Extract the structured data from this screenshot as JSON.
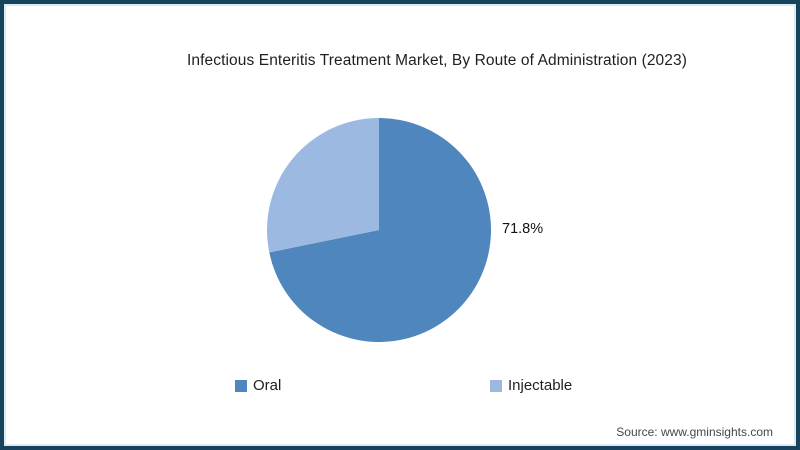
{
  "chart_data": {
    "type": "pie",
    "title": "Infectious Enteritis Treatment Market, By Route of Administration (2023)",
    "series": [
      {
        "name": "Oral",
        "value": 71.8,
        "color": "#4F86BD",
        "data_label": "71.8%"
      },
      {
        "name": "Injectable",
        "value": 28.2,
        "color": "#9CBAE1",
        "data_label": ""
      }
    ],
    "start_angle_deg": 0,
    "direction": "clockwise",
    "legend_position": "bottom",
    "data_label_shown": "71.8%"
  },
  "source": {
    "text": "Source: www.gminsights.com"
  },
  "frame": {
    "border_color": "#17445c",
    "inner_line_color": "#ddeaf3",
    "background": "#ffffff"
  }
}
